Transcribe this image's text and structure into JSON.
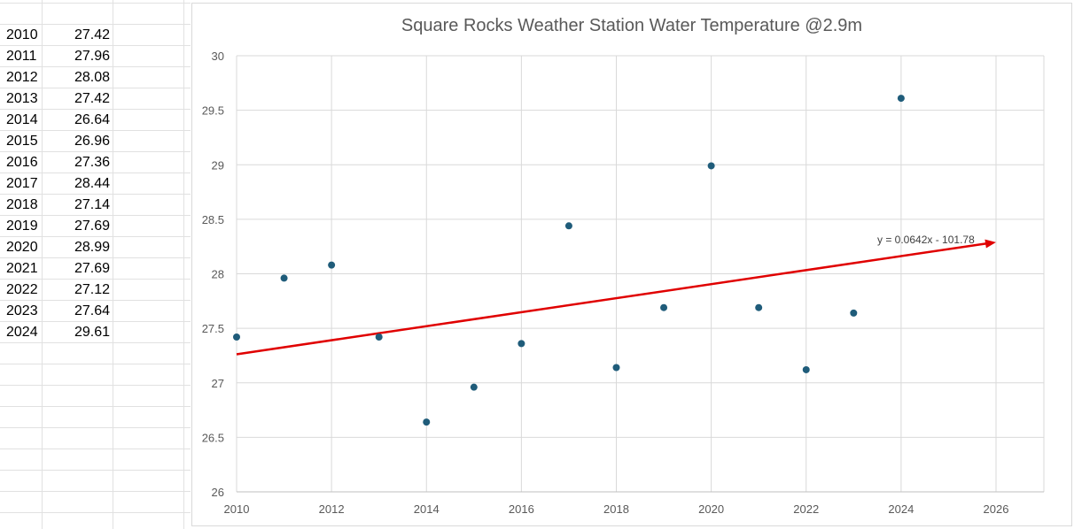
{
  "spreadsheet": {
    "rows": [
      {
        "year": "2010",
        "value": "27.42"
      },
      {
        "year": "2011",
        "value": "27.96"
      },
      {
        "year": "2012",
        "value": "28.08"
      },
      {
        "year": "2013",
        "value": "27.42"
      },
      {
        "year": "2014",
        "value": "26.64"
      },
      {
        "year": "2015",
        "value": "26.96"
      },
      {
        "year": "2016",
        "value": "27.36"
      },
      {
        "year": "2017",
        "value": "28.44"
      },
      {
        "year": "2018",
        "value": "27.14"
      },
      {
        "year": "2019",
        "value": "27.69"
      },
      {
        "year": "2020",
        "value": "28.99"
      },
      {
        "year": "2021",
        "value": "27.69"
      },
      {
        "year": "2022",
        "value": "27.12"
      },
      {
        "year": "2023",
        "value": "27.64"
      },
      {
        "year": "2024",
        "value": "29.61"
      }
    ]
  },
  "chart_data": {
    "type": "scatter",
    "title": "Square Rocks Weather Station Water Temperature @2.9m",
    "xlabel": "",
    "ylabel": "",
    "xlim": [
      2010,
      2026
    ],
    "ylim": [
      26,
      30
    ],
    "x_ticks": [
      "2010",
      "2012",
      "2014",
      "2016",
      "2018",
      "2020",
      "2022",
      "2024",
      "2026"
    ],
    "y_ticks": [
      "26",
      "26.5",
      "27",
      "27.5",
      "28",
      "28.5",
      "29",
      "29.5",
      "30"
    ],
    "grid": true,
    "legend": "none",
    "series": [
      {
        "x": [
          2010,
          2011,
          2012,
          2013,
          2014,
          2015,
          2016,
          2017,
          2018,
          2019,
          2020,
          2021,
          2022,
          2023,
          2024
        ],
        "y": [
          27.42,
          27.96,
          28.08,
          27.42,
          26.64,
          26.96,
          27.36,
          28.44,
          27.14,
          27.69,
          28.99,
          27.69,
          27.12,
          27.64,
          29.61
        ],
        "color": "#1f5c7a"
      }
    ],
    "trendline": {
      "x_start": 2010,
      "x_end": 2026,
      "slope": 0.0642,
      "intercept": -101.78,
      "color": "#e00000",
      "equation_label": "y = 0.0642x - 101.78"
    }
  }
}
